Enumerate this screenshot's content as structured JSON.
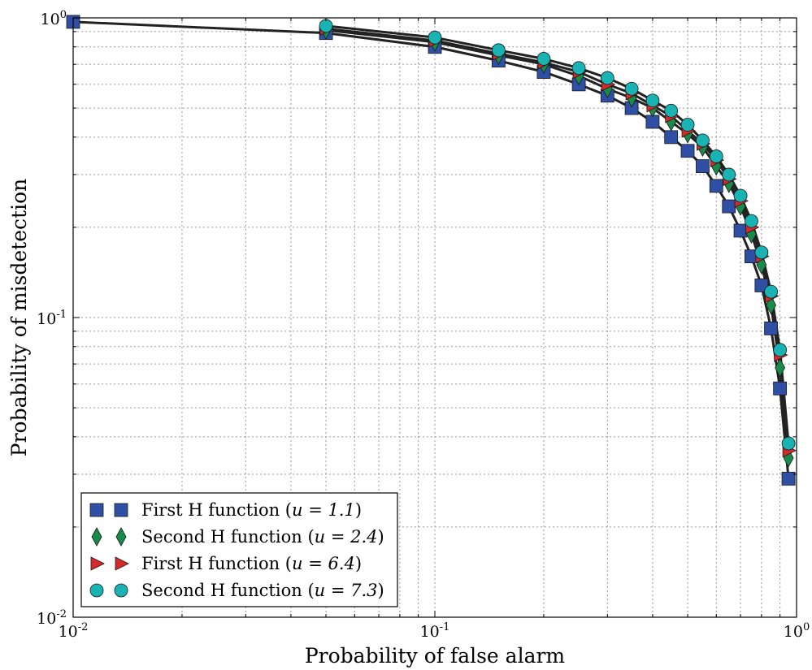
{
  "chart_data": {
    "type": "line",
    "xlabel": "Probability of false alarm",
    "ylabel": "Probability of misdetection",
    "xscale": "log",
    "yscale": "log",
    "xlim": [
      0.01,
      1
    ],
    "ylim": [
      0.01,
      1
    ],
    "xticks": [
      {
        "base": "10",
        "exp": "-2",
        "value": 0.01
      },
      {
        "base": "10",
        "exp": "-1",
        "value": 0.1
      },
      {
        "base": "10",
        "exp": "0",
        "value": 1
      }
    ],
    "yticks": [
      {
        "base": "10",
        "exp": "-2",
        "value": 0.01
      },
      {
        "base": "10",
        "exp": "-1",
        "value": 0.1
      },
      {
        "base": "10",
        "exp": "0",
        "value": 1
      }
    ],
    "grid": true,
    "legend_position": "bottom-left",
    "series": [
      {
        "name": "First H function",
        "param": "u = 1.1",
        "marker": "square",
        "color": "#2e4fa3",
        "x": [
          0.01,
          0.05,
          0.1,
          0.15,
          0.2,
          0.25,
          0.3,
          0.35,
          0.4,
          0.45,
          0.5,
          0.55,
          0.6,
          0.65,
          0.7,
          0.75,
          0.8,
          0.85,
          0.9,
          0.95
        ],
        "y": [
          0.97,
          0.89,
          0.8,
          0.72,
          0.66,
          0.6,
          0.55,
          0.5,
          0.45,
          0.4,
          0.36,
          0.32,
          0.275,
          0.235,
          0.195,
          0.16,
          0.128,
          0.092,
          0.058,
          0.029
        ]
      },
      {
        "name": "Second H function",
        "param": "u = 2.4",
        "marker": "diamond",
        "color": "#1a8a4a",
        "x": [
          0.05,
          0.1,
          0.15,
          0.2,
          0.25,
          0.3,
          0.35,
          0.4,
          0.45,
          0.5,
          0.55,
          0.6,
          0.65,
          0.7,
          0.75,
          0.8,
          0.85,
          0.9,
          0.95
        ],
        "y": [
          0.91,
          0.83,
          0.75,
          0.7,
          0.64,
          0.58,
          0.54,
          0.5,
          0.45,
          0.41,
          0.37,
          0.32,
          0.28,
          0.235,
          0.19,
          0.15,
          0.11,
          0.068,
          0.034
        ]
      },
      {
        "name": "First H function",
        "param": "u = 6.4",
        "marker": "triangle-right",
        "color": "#d42a2a",
        "x": [
          0.05,
          0.1,
          0.15,
          0.2,
          0.25,
          0.3,
          0.35,
          0.4,
          0.45,
          0.5,
          0.55,
          0.6,
          0.65,
          0.7,
          0.75,
          0.8,
          0.85,
          0.9,
          0.95
        ],
        "y": [
          0.92,
          0.84,
          0.76,
          0.71,
          0.66,
          0.6,
          0.56,
          0.51,
          0.47,
          0.42,
          0.38,
          0.335,
          0.29,
          0.245,
          0.2,
          0.16,
          0.118,
          0.075,
          0.036
        ]
      },
      {
        "name": "Second H function",
        "param": "u = 7.3",
        "marker": "circle",
        "color": "#1ab3b3",
        "x": [
          0.05,
          0.1,
          0.15,
          0.2,
          0.25,
          0.3,
          0.35,
          0.4,
          0.45,
          0.5,
          0.55,
          0.6,
          0.65,
          0.7,
          0.75,
          0.8,
          0.85,
          0.9,
          0.95
        ],
        "y": [
          0.94,
          0.86,
          0.78,
          0.73,
          0.68,
          0.63,
          0.58,
          0.53,
          0.49,
          0.44,
          0.39,
          0.345,
          0.3,
          0.255,
          0.21,
          0.165,
          0.122,
          0.078,
          0.038
        ]
      }
    ]
  }
}
